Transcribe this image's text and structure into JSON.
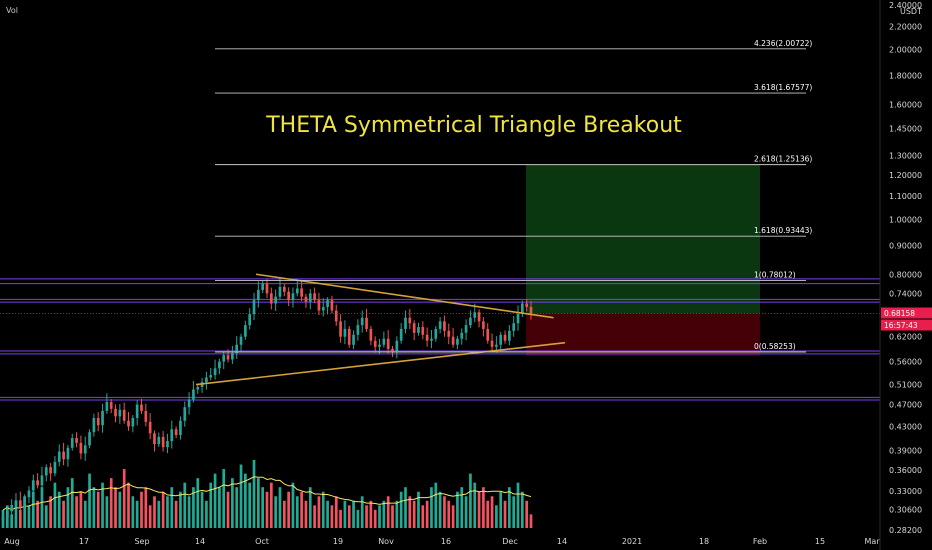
{
  "chart_data": {
    "type": "candlestick",
    "title": "THETA Symmetrical Triangle Breakout",
    "volume_label": "Vol",
    "currency": "USDT",
    "y_scale": "log",
    "ylim": [
      0.265,
      2.45
    ],
    "x_ticks": [
      "Aug",
      "17",
      "Sep",
      "14",
      "Oct",
      "19",
      "Nov",
      "16",
      "Dec",
      "14",
      "2021",
      "18",
      "Feb",
      "15",
      "Mar"
    ],
    "y_ticks": [
      "2.40000",
      "2.20000",
      "2.00000",
      "1.80000",
      "1.60000",
      "1.45000",
      "1.30000",
      "1.20000",
      "1.10000",
      "1.00000",
      "0.90000",
      "0.80000",
      "0.74000",
      "0.68000",
      "0.62000",
      "0.56000",
      "0.51000",
      "0.47000",
      "0.43000",
      "0.39000",
      "0.36000",
      "0.33000",
      "0.30600",
      "0.28200"
    ],
    "current_price": "0.68158",
    "countdown": "16:57:43",
    "fib_levels": [
      {
        "label": "4.236(2.00722)",
        "value": 2.00722
      },
      {
        "label": "3.618(1.67577)",
        "value": 1.67577
      },
      {
        "label": "2.618(1.25136)",
        "value": 1.25136
      },
      {
        "label": "1.618(0.93443)",
        "value": 0.93443
      },
      {
        "label": "1(0.78012)",
        "value": 0.78012
      },
      {
        "label": "0(0.58253)",
        "value": 0.58253
      }
    ],
    "horizontal_levels": [
      0.785,
      0.77,
      0.722,
      0.714,
      0.585,
      0.578,
      0.484,
      0.479
    ],
    "triangle_lines": [
      {
        "from": [
          0.0,
          0.8
        ],
        "to": [
          0.82,
          0.67
        ]
      },
      {
        "from": [
          0.0,
          0.51
        ],
        "to": [
          1.0,
          0.605
        ]
      }
    ],
    "position": {
      "entry": 0.68158,
      "target": 1.25136,
      "stop": 0.5735
    },
    "colors": {
      "up": "#26a69a",
      "down": "#ef5350",
      "vol_up": "#22ab94",
      "vol_down": "#f7525f",
      "level": "#7b3ff2",
      "fib": "#c8c8c8",
      "triangle": "#d4a13a",
      "ma": "#f5e663",
      "tp_zone": "#0b3d12",
      "sl_zone": "#4d0008",
      "title": "#f0e442",
      "badge": "#e91e4d"
    },
    "series": [
      {
        "name": "Price",
        "values": [
          0.297,
          0.304,
          0.312,
          0.318,
          0.309,
          0.322,
          0.331,
          0.345,
          0.338,
          0.352,
          0.364,
          0.355,
          0.372,
          0.388,
          0.376,
          0.394,
          0.41,
          0.402,
          0.385,
          0.398,
          0.42,
          0.445,
          0.432,
          0.458,
          0.475,
          0.462,
          0.448,
          0.46,
          0.44,
          0.43,
          0.445,
          0.47,
          0.458,
          0.438,
          0.418,
          0.4,
          0.412,
          0.395,
          0.405,
          0.425,
          0.415,
          0.44,
          0.465,
          0.48,
          0.5,
          0.505,
          0.515,
          0.525,
          0.53,
          0.545,
          0.56,
          0.575,
          0.565,
          0.58,
          0.6,
          0.62,
          0.65,
          0.68,
          0.72,
          0.75,
          0.77,
          0.74,
          0.71,
          0.73,
          0.76,
          0.745,
          0.72,
          0.74,
          0.755,
          0.73,
          0.715,
          0.74,
          0.72,
          0.69,
          0.7,
          0.72,
          0.69,
          0.66,
          0.62,
          0.64,
          0.6,
          0.625,
          0.65,
          0.67,
          0.64,
          0.61,
          0.595,
          0.6,
          0.615,
          0.59,
          0.585,
          0.61,
          0.64,
          0.67,
          0.655,
          0.63,
          0.645,
          0.625,
          0.61,
          0.615,
          0.64,
          0.66,
          0.635,
          0.62,
          0.6,
          0.615,
          0.63,
          0.65,
          0.67,
          0.685,
          0.66,
          0.64,
          0.61,
          0.595,
          0.6,
          0.625,
          0.61,
          0.635,
          0.655,
          0.68,
          0.71,
          0.7,
          0.68158
        ]
      },
      {
        "name": "Volume",
        "values": [
          4,
          5,
          3,
          6,
          4,
          7,
          5,
          8,
          6,
          9,
          5,
          7,
          10,
          8,
          6,
          9,
          11,
          7,
          8,
          6,
          12,
          9,
          8,
          10,
          7,
          11,
          9,
          8,
          13,
          10,
          7,
          6,
          8,
          9,
          5,
          7,
          6,
          8,
          7,
          9,
          6,
          8,
          10,
          7,
          9,
          11,
          8,
          6,
          10,
          12,
          9,
          13,
          8,
          11,
          9,
          14,
          12,
          10,
          15,
          11,
          9,
          8,
          10,
          7,
          9,
          6,
          8,
          10,
          7,
          8,
          6,
          9,
          5,
          7,
          8,
          6,
          5,
          7,
          4,
          6,
          5,
          6,
          4,
          7,
          5,
          6,
          4,
          5,
          6,
          7,
          5,
          6,
          8,
          9,
          7,
          6,
          8,
          5,
          6,
          9,
          10,
          8,
          7,
          6,
          5,
          8,
          9,
          7,
          12,
          10,
          8,
          9,
          6,
          7,
          5,
          8,
          6,
          9,
          7,
          10,
          8,
          6,
          3
        ]
      }
    ]
  }
}
